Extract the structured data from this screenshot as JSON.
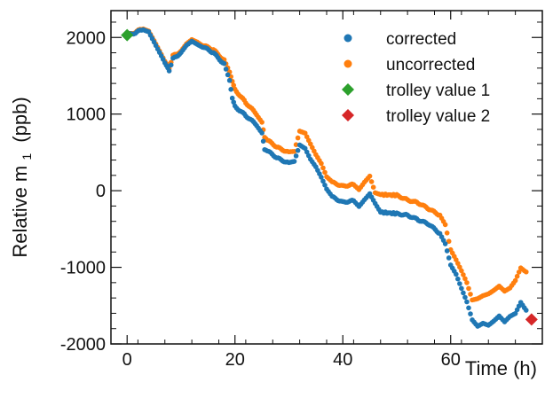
{
  "chart_data": {
    "type": "scatter",
    "title": "",
    "xlabel": "Time (h)",
    "ylabel": "Relative m",
    "ylabel_subscript": "1",
    "ylabel_unit": "(ppb)",
    "xlim": [
      -3,
      77
    ],
    "ylim": [
      -2000,
      2350
    ],
    "xticks": [
      0,
      20,
      40,
      60
    ],
    "yticks": [
      -2000,
      -1000,
      0,
      1000,
      2000
    ],
    "xtick_labels": [
      "0",
      "20",
      "40",
      "60"
    ],
    "ytick_labels": [
      "-2000",
      "-1000",
      "0",
      "1000",
      "2000"
    ],
    "grid": false,
    "legend_position": "top-right",
    "series": [
      {
        "name": "corrected",
        "marker": "circle",
        "color": "#1f77b4",
        "points": [
          [
            0,
            2030
          ],
          [
            1.5,
            2060
          ],
          [
            3,
            2110
          ],
          [
            4,
            2080
          ],
          [
            5,
            1940
          ],
          [
            6,
            1800
          ],
          [
            7,
            1660
          ],
          [
            7.8,
            1560
          ],
          [
            8.5,
            1720
          ],
          [
            10,
            1800
          ],
          [
            11,
            1900
          ],
          [
            12,
            1960
          ],
          [
            13,
            1920
          ],
          [
            14,
            1880
          ],
          [
            16,
            1800
          ],
          [
            18,
            1650
          ],
          [
            19,
            1430
          ],
          [
            19.5,
            1200
          ],
          [
            20,
            1100
          ],
          [
            22,
            980
          ],
          [
            24,
            860
          ],
          [
            25,
            760
          ],
          [
            25.5,
            540
          ],
          [
            26,
            520
          ],
          [
            28,
            420
          ],
          [
            30,
            360
          ],
          [
            31,
            380
          ],
          [
            32,
            600
          ],
          [
            33,
            560
          ],
          [
            34,
            420
          ],
          [
            35,
            320
          ],
          [
            36,
            180
          ],
          [
            37,
            20
          ],
          [
            38,
            -80
          ],
          [
            40,
            -150
          ],
          [
            42,
            -130
          ],
          [
            43,
            -200
          ],
          [
            44,
            -110
          ],
          [
            45,
            -30
          ],
          [
            46,
            -160
          ],
          [
            47,
            -280
          ],
          [
            50,
            -300
          ],
          [
            52,
            -320
          ],
          [
            54,
            -380
          ],
          [
            56,
            -440
          ],
          [
            58,
            -560
          ],
          [
            59,
            -700
          ],
          [
            60,
            -980
          ],
          [
            61,
            -1100
          ],
          [
            62,
            -1280
          ],
          [
            63,
            -1450
          ],
          [
            64,
            -1680
          ],
          [
            65,
            -1760
          ],
          [
            66,
            -1720
          ],
          [
            67,
            -1750
          ],
          [
            68,
            -1700
          ],
          [
            69,
            -1640
          ],
          [
            70,
            -1720
          ],
          [
            71,
            -1650
          ],
          [
            72,
            -1610
          ],
          [
            73,
            -1460
          ],
          [
            74,
            -1560
          ]
        ]
      },
      {
        "name": "uncorrected",
        "marker": "circle",
        "color": "#ff7f0e",
        "points": [
          [
            0,
            2030
          ],
          [
            1.5,
            2070
          ],
          [
            3,
            2120
          ],
          [
            4,
            2090
          ],
          [
            5,
            1960
          ],
          [
            6,
            1820
          ],
          [
            7,
            1680
          ],
          [
            7.8,
            1590
          ],
          [
            8.5,
            1760
          ],
          [
            10,
            1820
          ],
          [
            11,
            1920
          ],
          [
            12,
            1980
          ],
          [
            13,
            1950
          ],
          [
            14,
            1900
          ],
          [
            16,
            1840
          ],
          [
            18,
            1700
          ],
          [
            19,
            1540
          ],
          [
            19.5,
            1420
          ],
          [
            20,
            1320
          ],
          [
            22,
            1150
          ],
          [
            24,
            1000
          ],
          [
            25,
            900
          ],
          [
            25.5,
            700
          ],
          [
            26,
            660
          ],
          [
            28,
            560
          ],
          [
            30,
            500
          ],
          [
            31,
            510
          ],
          [
            32,
            780
          ],
          [
            33,
            760
          ],
          [
            34,
            620
          ],
          [
            35,
            480
          ],
          [
            36,
            360
          ],
          [
            37,
            180
          ],
          [
            38,
            110
          ],
          [
            40,
            60
          ],
          [
            42,
            80
          ],
          [
            43,
            20
          ],
          [
            44,
            120
          ],
          [
            45,
            200
          ],
          [
            46,
            -20
          ],
          [
            47,
            -50
          ],
          [
            50,
            -60
          ],
          [
            52,
            -120
          ],
          [
            54,
            -160
          ],
          [
            56,
            -240
          ],
          [
            58,
            -320
          ],
          [
            59,
            -450
          ],
          [
            60,
            -780
          ],
          [
            61,
            -910
          ],
          [
            62,
            -1050
          ],
          [
            63,
            -1200
          ],
          [
            64,
            -1420
          ],
          [
            65,
            -1400
          ],
          [
            66,
            -1360
          ],
          [
            67,
            -1340
          ],
          [
            68,
            -1300
          ],
          [
            69,
            -1250
          ],
          [
            70,
            -1320
          ],
          [
            71,
            -1280
          ],
          [
            72,
            -1180
          ],
          [
            73,
            -1010
          ],
          [
            74,
            -1060
          ]
        ]
      },
      {
        "name": "trolley value 1",
        "marker": "diamond",
        "color": "#2ca02c",
        "points": [
          [
            0,
            2030
          ]
        ]
      },
      {
        "name": "trolley value 2",
        "marker": "diamond",
        "color": "#d62728",
        "points": [
          [
            75,
            -1680
          ]
        ]
      }
    ]
  }
}
